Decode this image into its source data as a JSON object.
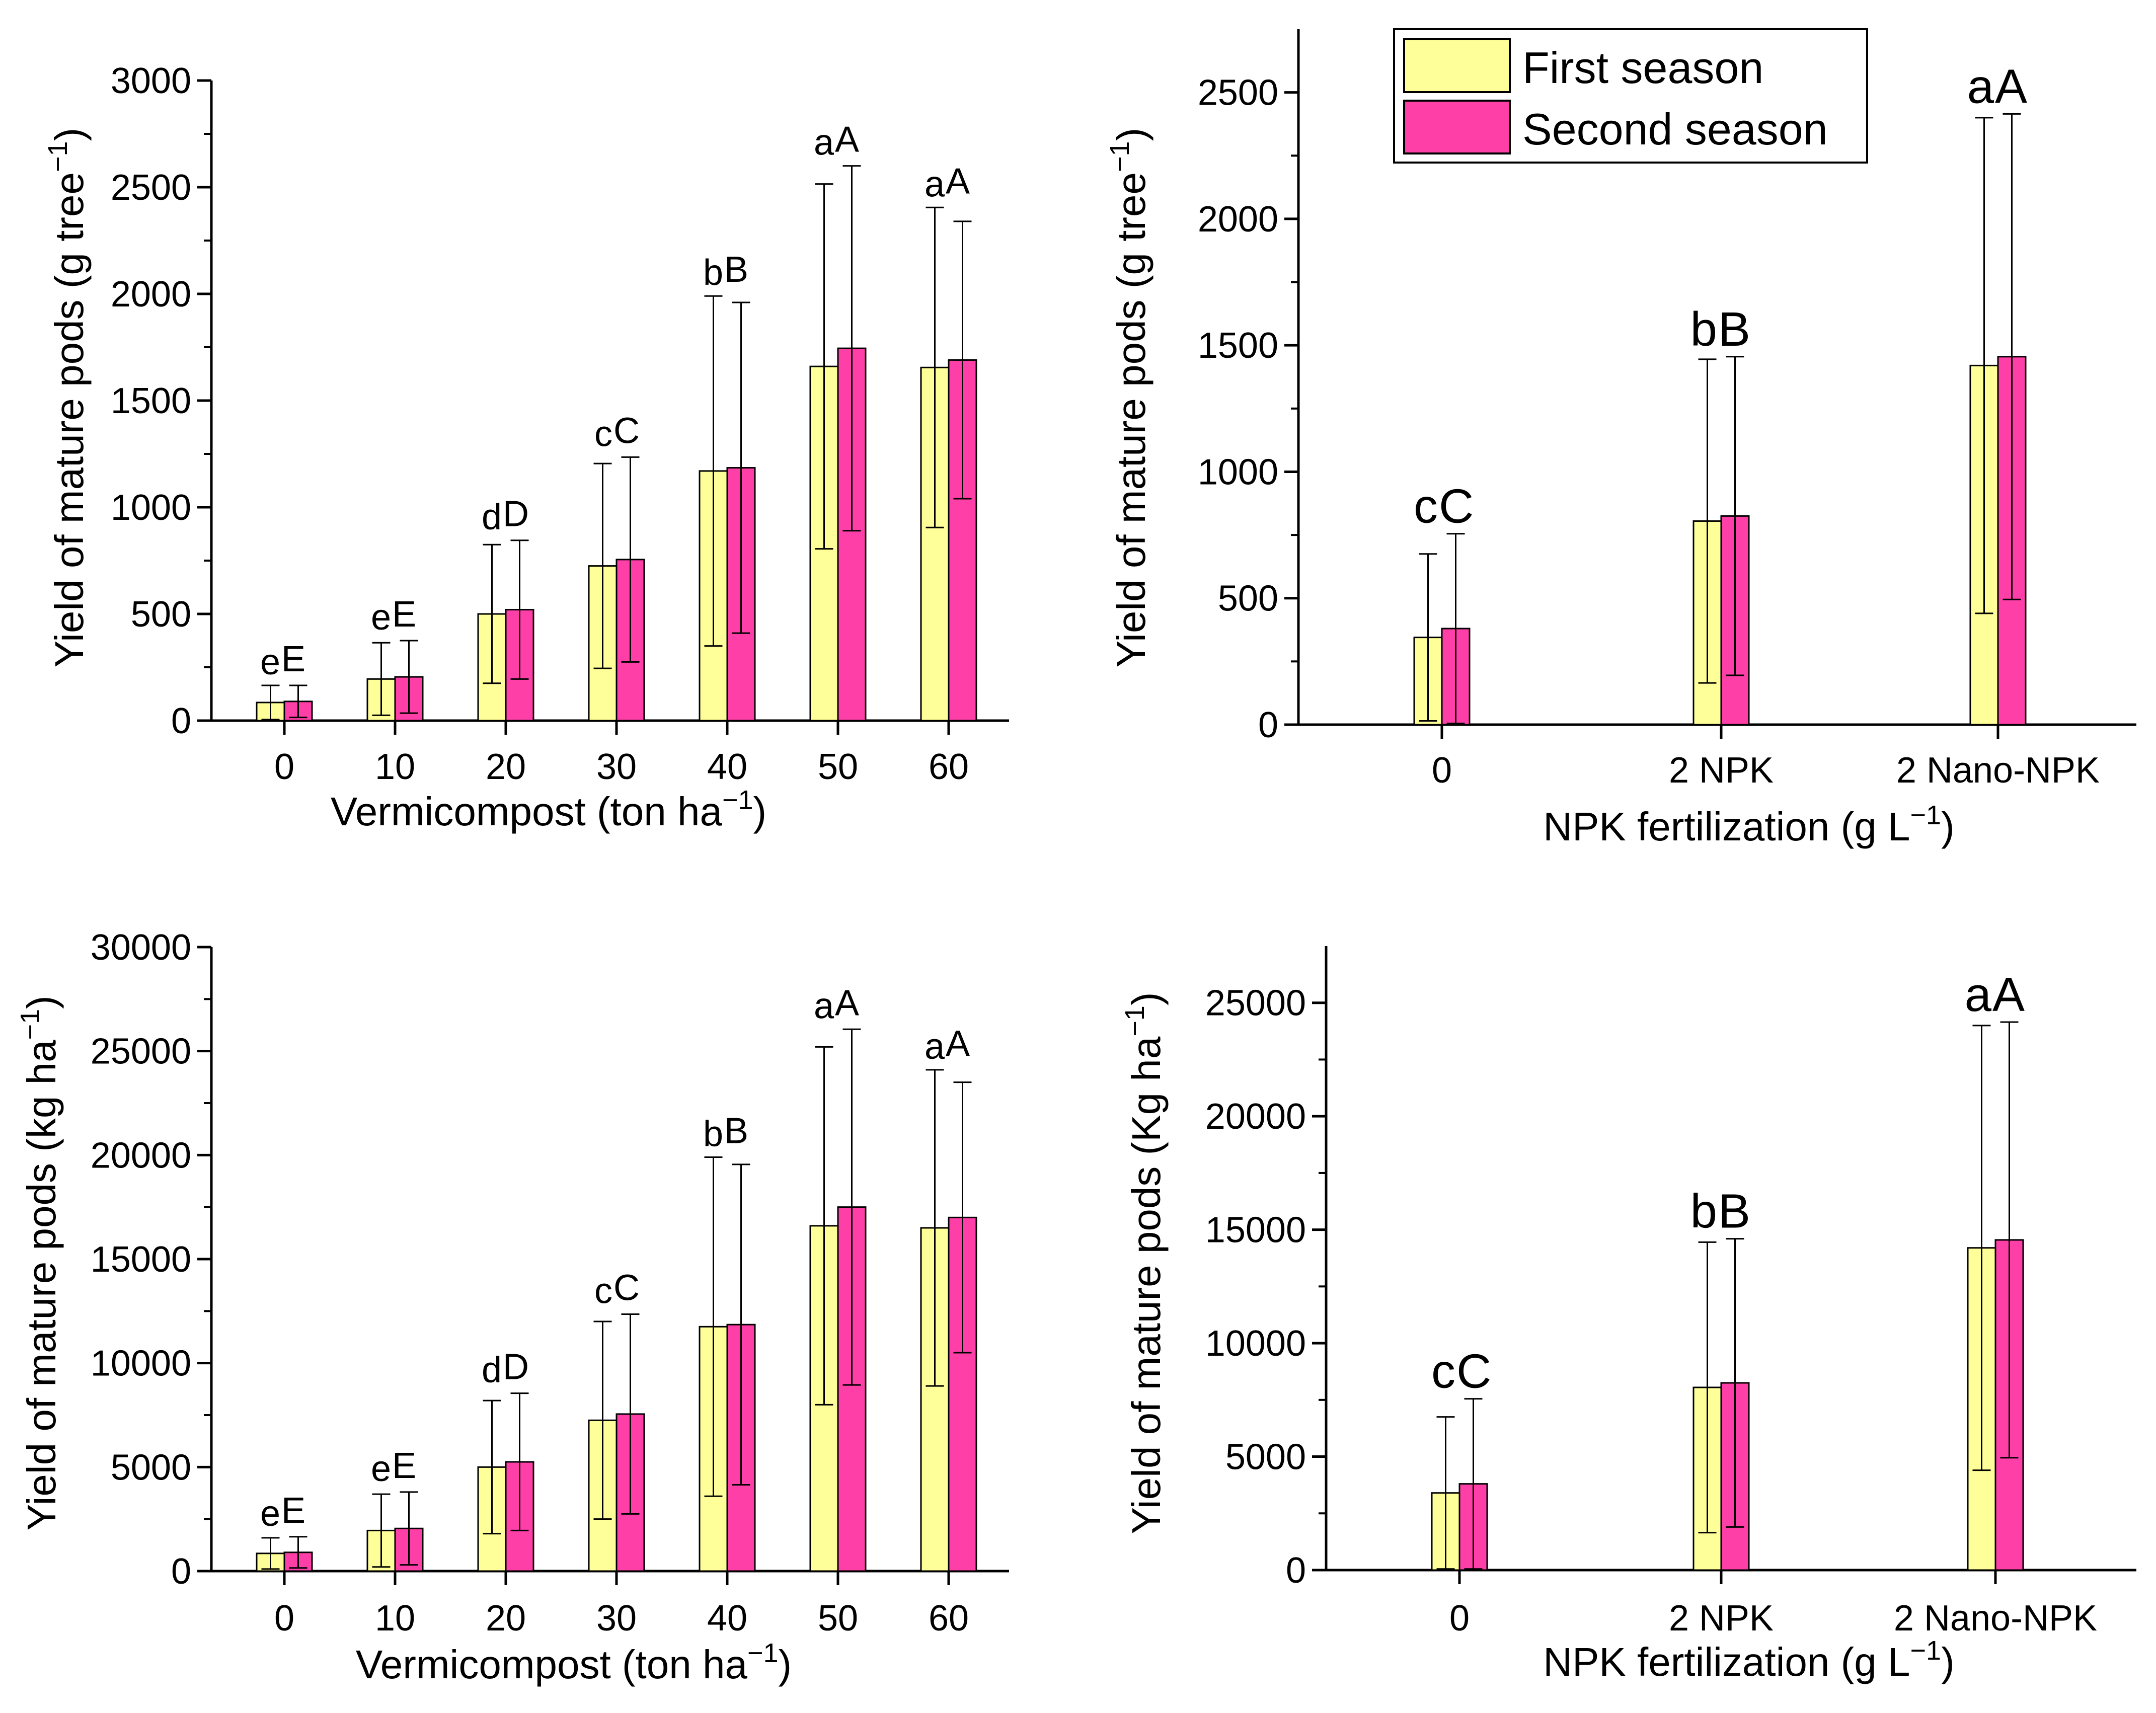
{
  "legend": {
    "first_label": "First season",
    "second_label": "Second season",
    "first_color": "#ffff99",
    "second_color": "#ff3fa8",
    "placement": "top-right of top-right panel"
  },
  "chart_data": [
    {
      "type": "bar",
      "panel": "top-left",
      "xlabel": "Vermicompost (ton ha",
      "xlabel_sup": "−1",
      "xlabel_end": ")",
      "ylabel": "Yield of mature pods (g tree",
      "ylabel_sup": "−1",
      "ylabel_end": ")",
      "categories": [
        "0",
        "10",
        "20",
        "30",
        "40",
        "50",
        "60"
      ],
      "ylim": [
        0,
        3000
      ],
      "yticks": [
        "0",
        "500",
        "1000",
        "1500",
        "2000",
        "2500",
        "3000"
      ],
      "series": [
        {
          "values": [
            85,
            195,
            500,
            725,
            1170,
            1660,
            1655
          ],
          "errors": [
            80,
            170,
            325,
            480,
            820,
            855,
            750
          ],
          "letters": [
            "e",
            "e",
            "d",
            "c",
            "b",
            "a",
            "a"
          ]
        },
        {
          "values": [
            90,
            205,
            520,
            755,
            1185,
            1745,
            1690
          ],
          "errors": [
            75,
            170,
            325,
            480,
            775,
            855,
            650
          ],
          "letters": [
            "E",
            "E",
            "D",
            "C",
            "B",
            "A",
            "A"
          ]
        }
      ]
    },
    {
      "type": "bar",
      "panel": "top-right",
      "xlabel": "NPK fertilization (g L",
      "xlabel_sup": "−1",
      "xlabel_end": ")",
      "ylabel": "Yield of mature pods (g tree",
      "ylabel_sup": "−1",
      "ylabel_end": ")",
      "categories": [
        "0",
        "2 NPK",
        "2 Nano-NPK"
      ],
      "ylim": [
        0,
        2750
      ],
      "yticks": [
        "0",
        "500",
        "1000",
        "1500",
        "2000",
        "2500"
      ],
      "series": [
        {
          "values": [
            345,
            805,
            1420
          ],
          "errors": [
            330,
            640,
            980
          ],
          "letters": [
            "c",
            "b",
            "a"
          ]
        },
        {
          "values": [
            380,
            825,
            1455
          ],
          "errors": [
            375,
            630,
            960
          ],
          "letters": [
            "C",
            "B",
            "A"
          ]
        }
      ]
    },
    {
      "type": "bar",
      "panel": "bottom-left",
      "xlabel": "Vermicompost (ton ha",
      "xlabel_sup": "−1",
      "xlabel_end": ")",
      "ylabel": "Yield of mature pods (kg ha",
      "ylabel_sup": "−1",
      "ylabel_end": ")",
      "categories": [
        "0",
        "10",
        "20",
        "30",
        "40",
        "50",
        "60"
      ],
      "ylim": [
        0,
        30000
      ],
      "yticks": [
        "0",
        "5000",
        "10000",
        "15000",
        "20000",
        "25000",
        "30000"
      ],
      "series": [
        {
          "values": [
            850,
            1950,
            5000,
            7250,
            11750,
            16600,
            16500
          ],
          "errors": [
            750,
            1750,
            3200,
            4750,
            8150,
            8600,
            7600
          ],
          "letters": [
            "e",
            "e",
            "d",
            "c",
            "b",
            "a",
            "a"
          ]
        },
        {
          "values": [
            900,
            2050,
            5250,
            7550,
            11850,
            17500,
            17000
          ],
          "errors": [
            750,
            1750,
            3300,
            4800,
            7700,
            8550,
            6500
          ],
          "letters": [
            "E",
            "E",
            "D",
            "C",
            "B",
            "A",
            "A"
          ]
        }
      ]
    },
    {
      "type": "bar",
      "panel": "bottom-right",
      "xlabel": "NPK fertilization (g L",
      "xlabel_sup": "−1",
      "xlabel_end": ")",
      "ylabel": "Yield of mature pods (Kg ha",
      "ylabel_sup": "−1",
      "ylabel_end": ")",
      "categories": [
        "0",
        "2 NPK",
        "2 Nano-NPK"
      ],
      "ylim": [
        0,
        27500
      ],
      "yticks": [
        "0",
        "5000",
        "10000",
        "15000",
        "20000",
        "25000"
      ],
      "series": [
        {
          "values": [
            3400,
            8050,
            14200
          ],
          "errors": [
            3350,
            6400,
            9800
          ],
          "letters": [
            "c",
            "b",
            "a"
          ]
        },
        {
          "values": [
            3800,
            8250,
            14550
          ],
          "errors": [
            3750,
            6350,
            9600
          ],
          "letters": [
            "C",
            "B",
            "A"
          ]
        }
      ]
    }
  ]
}
